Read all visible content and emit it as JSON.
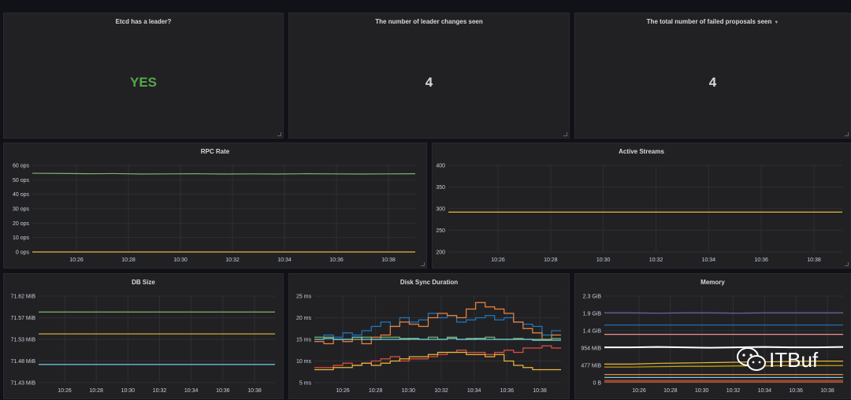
{
  "stats": [
    {
      "title": "Etcd has a leader?",
      "value": "YES",
      "color": "#56a64b"
    },
    {
      "title": "The number of leader changes seen",
      "value": "4",
      "color": "#d8d9da"
    },
    {
      "title": "The total number of failed proposals seen",
      "value": "4",
      "color": "#d8d9da",
      "has_menu_caret": true
    }
  ],
  "time_axis": [
    "10:26",
    "10:28",
    "10:30",
    "10:32",
    "10:34",
    "10:36",
    "10:38"
  ],
  "panels": {
    "rpc_rate": {
      "title": "RPC Rate"
    },
    "active_streams": {
      "title": "Active Streams"
    },
    "db_size": {
      "title": "DB Size"
    },
    "disk_sync": {
      "title": "Disk Sync Duration"
    },
    "memory": {
      "title": "Memory"
    }
  },
  "watermark": {
    "text": "ITBuf",
    "icon": "wechat-icon"
  },
  "chart_data": [
    {
      "id": "rpc_rate",
      "type": "line",
      "title": "RPC Rate",
      "y_ticks": [
        "60 ops",
        "50 ops",
        "40 ops",
        "30 ops",
        "20 ops",
        "10 ops",
        "0 ops"
      ],
      "ylim": [
        0,
        60
      ],
      "grid": true,
      "series": [
        {
          "color": "#7eb26d",
          "values": [
            54.5,
            54.4,
            54.2,
            54.3,
            54.0,
            54.1,
            54.2,
            54.0,
            54.1,
            54.0,
            54.2,
            54.1,
            54.0,
            54.1,
            54.2
          ]
        },
        {
          "color": "#eab839",
          "values": [
            0,
            0,
            0,
            0,
            0,
            0,
            0,
            0,
            0,
            0,
            0,
            0,
            0,
            0,
            0
          ]
        }
      ]
    },
    {
      "id": "active_streams",
      "type": "line",
      "title": "Active Streams",
      "y_ticks": [
        "400",
        "350",
        "300",
        "250",
        "200"
      ],
      "ylim": [
        200,
        400
      ],
      "grid": true,
      "series": [
        {
          "color": "#eab839",
          "values": [
            292,
            292,
            292,
            292,
            292,
            292,
            292,
            292,
            292,
            292,
            292,
            292,
            292,
            292,
            292
          ]
        }
      ]
    },
    {
      "id": "db_size",
      "type": "line",
      "title": "DB Size",
      "y_ticks": [
        "71.62 MiB",
        "71.57 MiB",
        "71.53 MiB",
        "71.48 MiB",
        "71.43 MiB"
      ],
      "ylim": [
        71.43,
        71.62
      ],
      "grid": true,
      "series": [
        {
          "color": "#7eb26d",
          "values": [
            71.585,
            71.585,
            71.585,
            71.585,
            71.585,
            71.585,
            71.585,
            71.585,
            71.585,
            71.585
          ]
        },
        {
          "color": "#eab839",
          "values": [
            71.537,
            71.537,
            71.537,
            71.537,
            71.537,
            71.537,
            71.537,
            71.537,
            71.537,
            71.537
          ]
        },
        {
          "color": "#6ed0e0",
          "values": [
            71.47,
            71.47,
            71.47,
            71.47,
            71.47,
            71.47,
            71.47,
            71.47,
            71.47,
            71.47
          ]
        }
      ]
    },
    {
      "id": "disk_sync",
      "type": "line",
      "title": "Disk Sync Duration",
      "y_ticks": [
        "25 ms",
        "20 ms",
        "15 ms",
        "10 ms",
        "5 ms"
      ],
      "ylim": [
        5,
        25
      ],
      "grid": true,
      "stepped": true,
      "series": [
        {
          "color": "#1f78c1",
          "values": [
            15,
            16,
            15.5,
            16.5,
            16,
            17,
            18,
            19,
            18,
            20,
            19,
            19.5,
            21,
            20,
            20.5,
            19,
            19.5,
            20,
            20.5,
            19.5,
            20,
            19,
            18.5,
            18,
            16,
            17
          ]
        },
        {
          "color": "#ef843c",
          "values": [
            14.5,
            14,
            15,
            14.5,
            15,
            14,
            15.5,
            16,
            18,
            19,
            18.5,
            18,
            20,
            21,
            20.5,
            20,
            22,
            23.5,
            22.5,
            22,
            21,
            19,
            17.5,
            16.5,
            15,
            16
          ]
        },
        {
          "color": "#7eb26d",
          "values": [
            15.5,
            15.5,
            15,
            15,
            15,
            15.5,
            15,
            15.5,
            15.5,
            15.2,
            15,
            15,
            15.5,
            15,
            15.5,
            15,
            15.2,
            15,
            15.5,
            15,
            15,
            15.2,
            15,
            15,
            15,
            15.2
          ]
        },
        {
          "color": "#6ed0e0",
          "values": [
            15,
            15.2,
            15,
            15,
            15.5,
            15,
            15,
            15,
            15,
            15,
            15.2,
            15,
            15,
            15,
            15.2,
            15,
            15,
            15.2,
            15,
            15,
            15,
            15,
            15,
            14.8,
            14.8,
            14.8
          ]
        },
        {
          "color": "#e24d42",
          "values": [
            8.5,
            8.5,
            9,
            9.5,
            9,
            9.5,
            10,
            10.5,
            11,
            10,
            10.5,
            10.5,
            11,
            11.5,
            12,
            12.5,
            12,
            12,
            11.5,
            12,
            12.5,
            12,
            13,
            13,
            13.5,
            13
          ]
        },
        {
          "color": "#eab839",
          "values": [
            8,
            8,
            8.5,
            8.5,
            9,
            9.5,
            9,
            9.5,
            10,
            10.5,
            11,
            11,
            11.5,
            12,
            12,
            12,
            11.5,
            11.5,
            11,
            11.5,
            10,
            9,
            8.5,
            8,
            8,
            8
          ]
        }
      ]
    },
    {
      "id": "memory",
      "type": "line",
      "title": "Memory",
      "y_ticks": [
        "2.3 GiB",
        "1.9 GiB",
        "1.4 GiB",
        "954 MiB",
        "477 MiB",
        "0 B"
      ],
      "ylim": [
        0,
        2.33
      ],
      "grid": true,
      "series": [
        {
          "color": "#705da0",
          "values": [
            1.88,
            1.88,
            1.87,
            1.88,
            1.88,
            1.87,
            1.88,
            1.88,
            1.88,
            1.88
          ]
        },
        {
          "color": "#1f78c1",
          "values": [
            1.55,
            1.55,
            1.55,
            1.55,
            1.55,
            1.55,
            1.55,
            1.55,
            1.55,
            1.55
          ]
        },
        {
          "color": "#f29191",
          "values": [
            1.3,
            1.3,
            1.3,
            1.3,
            1.3,
            1.3,
            1.3,
            1.3,
            1.3,
            1.3
          ]
        },
        {
          "color": "#ffffff",
          "values": [
            0.95,
            0.95,
            0.96,
            0.95,
            0.94,
            0.95,
            0.96,
            0.95,
            0.95,
            0.96
          ]
        },
        {
          "color": "#eab839",
          "values": [
            0.5,
            0.5,
            0.52,
            0.53,
            0.54,
            0.55,
            0.56,
            0.57,
            0.58,
            0.58
          ]
        },
        {
          "color": "#cca300",
          "values": [
            0.42,
            0.42,
            0.43,
            0.44,
            0.44,
            0.45,
            0.45,
            0.46,
            0.46,
            0.46
          ]
        },
        {
          "color": "#ef843c",
          "values": [
            0.22,
            0.22,
            0.22,
            0.22,
            0.22,
            0.22,
            0.22,
            0.22,
            0.22,
            0.22
          ]
        },
        {
          "color": "#6ed0e0",
          "values": [
            0.14,
            0.14,
            0.14,
            0.14,
            0.14,
            0.14,
            0.14,
            0.14,
            0.14,
            0.14
          ]
        },
        {
          "color": "#e24d42",
          "values": [
            0.06,
            0.06,
            0.06,
            0.06,
            0.06,
            0.06,
            0.06,
            0.06,
            0.06,
            0.06
          ]
        },
        {
          "color": "#e0752d",
          "values": [
            0.02,
            0.02,
            0.02,
            0.02,
            0.02,
            0.02,
            0.02,
            0.02,
            0.02,
            0.02
          ]
        }
      ]
    }
  ]
}
